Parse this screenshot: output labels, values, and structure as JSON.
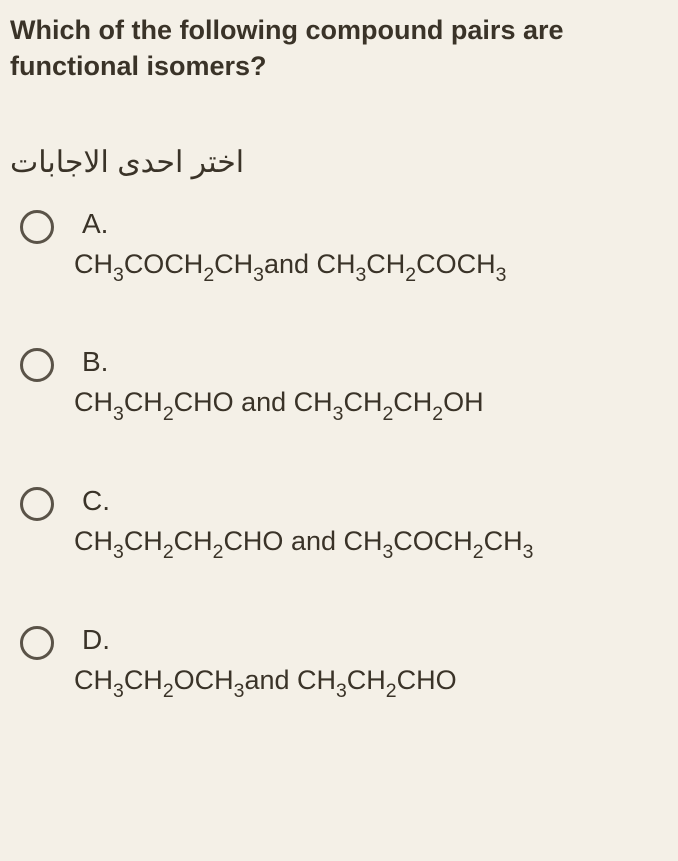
{
  "question": {
    "text": "Which of the following compound pairs are functional isomers?",
    "color": "#3a3328",
    "fontsize": 27
  },
  "instruction": {
    "text": "اختر احدى الاجابات",
    "color": "#3a3328",
    "fontsize": 30
  },
  "options": [
    {
      "letter": "A.",
      "formula_html": "CH<sub>3</sub>COCH<sub>2</sub>CH<sub>3</sub>and CH<sub>3</sub>CH<sub>2</sub>COCH<sub>3</sub>"
    },
    {
      "letter": "B.",
      "formula_html": "CH<sub>3</sub>CH<sub>2</sub>CHO and CH<sub>3</sub>CH<sub>2</sub>CH<sub>2</sub>OH"
    },
    {
      "letter": "C.",
      "formula_html": "CH<sub>3</sub>CH<sub>2</sub>CH<sub>2</sub>CHO and CH<sub>3</sub>COCH<sub>2</sub>CH<sub>3</sub>"
    },
    {
      "letter": "D.",
      "formula_html": "CH<sub>3</sub>CH<sub>2</sub>OCH<sub>3</sub>and CH<sub>3</sub>CH<sub>2</sub>CHO"
    }
  ],
  "styling": {
    "background_color": "#f4f0e7",
    "text_color": "#3a3328",
    "radio_border_color": "#5a5348",
    "radio_size": 34,
    "option_fontsize": 27,
    "letter_fontsize": 28
  }
}
